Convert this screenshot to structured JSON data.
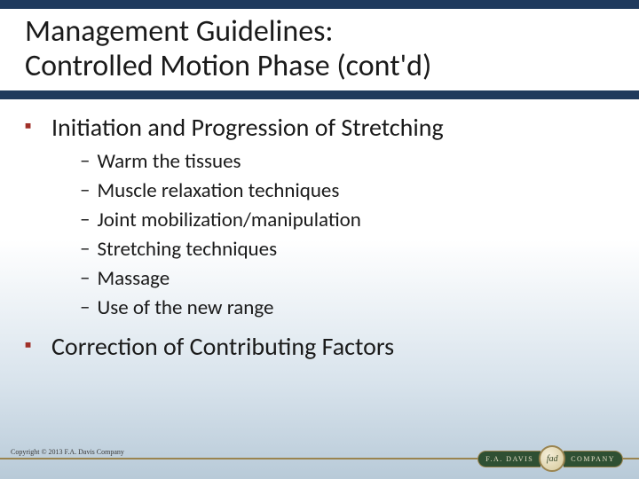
{
  "colors": {
    "bar": "#1f3a5d",
    "bullet_marker": "#a03028",
    "footer_line": "#9a8450",
    "logo_bg": "#2f5033",
    "text": "#1a1a1a"
  },
  "typography": {
    "title_fontsize": 34,
    "main_bullet_fontsize": 28,
    "sub_bullet_fontsize": 23,
    "copyright_fontsize": 8
  },
  "title": {
    "line1": "Management Guidelines:",
    "line2": "Controlled Motion Phase (cont'd)"
  },
  "bullets": [
    {
      "text": "Initiation and Progression of Stretching",
      "sub": [
        "Warm the tissues",
        "Muscle relaxation techniques",
        "Joint mobilization/manipulation",
        "Stretching techniques",
        "Massage",
        "Use of the new range"
      ]
    },
    {
      "text": "Correction of Contributing Factors",
      "sub": []
    }
  ],
  "footer": {
    "copyright": "Copyright © 2013 F.A. Davis Company",
    "logo_left": "F.A. DAVIS",
    "logo_right": "COMPANY",
    "logo_center": "fad"
  }
}
